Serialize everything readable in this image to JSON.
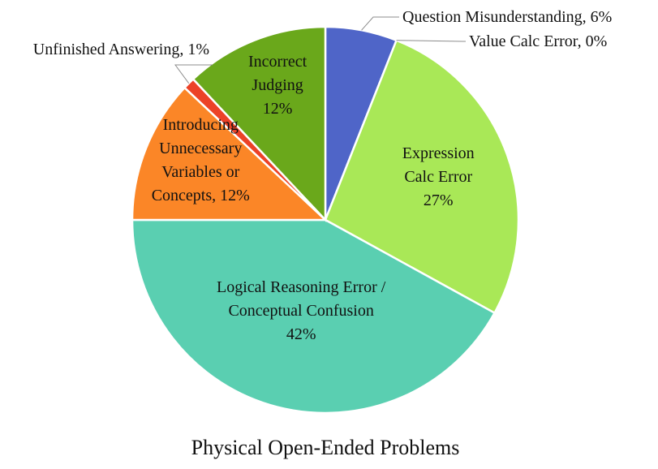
{
  "chart_data": {
    "type": "pie",
    "title": "Physical Open-Ended Problems",
    "legend": "none",
    "slices": [
      {
        "label": "Question Misunderstanding",
        "display": "Question Misunderstanding, 6%",
        "value": 6,
        "percent_label": "6%",
        "color": "#4f65c8"
      },
      {
        "label": "Value Calc Error",
        "display": "Value Calc Error, 0%",
        "value": 0,
        "percent_label": "0%",
        "color": "#8fa836"
      },
      {
        "label": "Expression Calc Error",
        "display": "Expression Calc Error 27%",
        "value": 27,
        "percent_label": "27%",
        "color": "#a9e857"
      },
      {
        "label": "Logical Reasoning Error / Conceptual Confusion",
        "display": "Logical Reasoning Error / Conceptual Confusion 42%",
        "value": 42,
        "percent_label": "42%",
        "color": "#5acfb1"
      },
      {
        "label": "Introducing Unnecessary Variables or Concepts",
        "display": "Introducing Unnecessary Variables or Concepts, 12%",
        "value": 12,
        "percent_label": "12%",
        "color": "#fb8627"
      },
      {
        "label": "Unfinished Answering",
        "display": "Unfinished Answering, 1%",
        "value": 1,
        "percent_label": "1%",
        "color": "#ec4227"
      },
      {
        "label": "Incorrect Judging",
        "display": "Incorrect Judging 12%",
        "value": 12,
        "percent_label": "12%",
        "color": "#6aa81b"
      }
    ]
  }
}
